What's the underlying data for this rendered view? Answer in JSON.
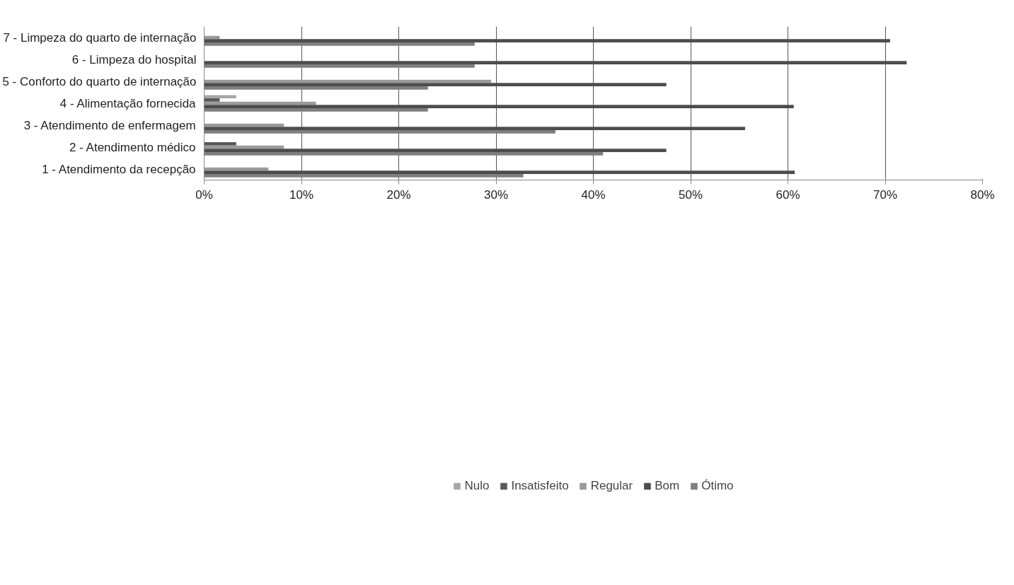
{
  "chart_data": {
    "type": "bar",
    "orientation": "horizontal",
    "categories": [
      "7 - Limpeza do quarto de internação",
      "6 - Limpeza do hospital",
      "5 - Conforto do quarto de internação",
      "4 - Alimentação fornecida",
      "3 - Atendimento de enfermagem",
      "2 - Atendimento médico",
      "1 - Atendimento da recepção"
    ],
    "series": [
      {
        "name": "Nulo",
        "color": "#a6a6a6",
        "values": [
          0,
          0,
          0,
          3.3,
          0,
          0,
          0
        ]
      },
      {
        "name": "Insatisfeito",
        "color": "#595959",
        "values": [
          0,
          0,
          0,
          1.6,
          0,
          3.3,
          0
        ]
      },
      {
        "name": "Regular",
        "color": "#9a9a9a",
        "values": [
          1.6,
          0,
          29.5,
          11.5,
          8.2,
          8.2,
          6.6
        ]
      },
      {
        "name": "Bom",
        "color": "#4d4d4d",
        "values": [
          70.5,
          72.2,
          47.5,
          60.6,
          55.6,
          47.5,
          60.7
        ]
      },
      {
        "name": "Ótimo",
        "color": "#7f7f7f",
        "values": [
          27.8,
          27.8,
          23,
          23,
          36.1,
          41,
          32.8
        ]
      }
    ],
    "xlim": [
      0,
      80
    ],
    "xticks": [
      {
        "value": 0,
        "label": "0%"
      },
      {
        "value": 10,
        "label": "10%"
      },
      {
        "value": 20,
        "label": "20%"
      },
      {
        "value": 30,
        "label": "30%"
      },
      {
        "value": 40,
        "label": "40%"
      },
      {
        "value": 50,
        "label": "50%"
      },
      {
        "value": 60,
        "label": "60%"
      },
      {
        "value": 70,
        "label": "70%"
      },
      {
        "value": 80,
        "label": "80%"
      }
    ],
    "grid": "x",
    "legend": "bottom"
  }
}
